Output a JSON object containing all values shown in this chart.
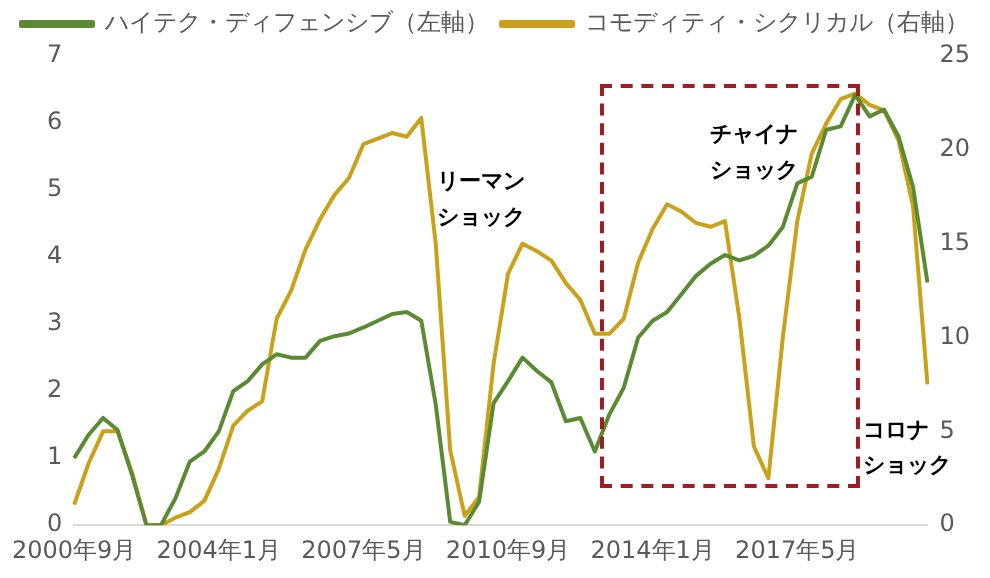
{
  "chart_data": {
    "type": "line",
    "categories": [
      "2000年9月",
      null,
      null,
      null,
      null,
      null,
      null,
      null,
      null,
      null,
      "2004年1月",
      null,
      null,
      null,
      null,
      null,
      null,
      null,
      null,
      null,
      "2007年5月",
      null,
      null,
      null,
      null,
      null,
      null,
      null,
      null,
      null,
      "2010年9月",
      null,
      null,
      null,
      null,
      null,
      null,
      null,
      null,
      null,
      "2014年1月",
      null,
      null,
      null,
      null,
      null,
      null,
      null,
      null,
      null,
      "2017年5月",
      null,
      null,
      null,
      null,
      null,
      null,
      null,
      null,
      null
    ],
    "series": [
      {
        "name": "ハイテク・ディフェンシブ（左軸）",
        "color": "#5a8a32",
        "values": [
          1.0,
          1.35,
          1.6,
          1.42,
          0.75,
          0,
          0,
          0.4,
          0.95,
          1.1,
          1.4,
          2.0,
          2.15,
          2.4,
          2.55,
          2.5,
          2.5,
          2.75,
          2.82,
          2.86,
          2.95,
          3.05,
          3.15,
          3.18,
          3.05,
          1.8,
          0.05,
          0,
          0.35,
          1.82,
          2.15,
          2.5,
          2.3,
          2.13,
          1.55,
          1.6,
          1.1,
          1.65,
          2.05,
          2.8,
          3.05,
          3.18,
          3.45,
          3.72,
          3.9,
          4.03,
          3.95,
          4.02,
          4.17,
          4.45,
          5.1,
          5.2,
          5.9,
          5.95,
          6.42,
          6.1,
          6.2,
          5.8,
          5.05,
          3.62
        ]
      },
      {
        "name": "コモディティ・シクリカル（右軸）",
        "color": "#c9a11a",
        "axis": "y2",
        "values": [
          1.1,
          3.3,
          5.0,
          5.0,
          2.8,
          0,
          0,
          0.4,
          0.7,
          1.3,
          3.0,
          5.3,
          6.1,
          6.6,
          11.0,
          12.5,
          14.7,
          16.3,
          17.6,
          18.5,
          20.3,
          20.6,
          20.9,
          20.7,
          21.7,
          15,
          4,
          0.5,
          1.5,
          8.6,
          13.4,
          15.0,
          14.6,
          14.1,
          12.9,
          12.0,
          10.2,
          10.2,
          11.0,
          14.0,
          15.8,
          17.1,
          16.7,
          16.1,
          15.9,
          16.2,
          11,
          4.2,
          2.5,
          10,
          16.2,
          19.8,
          21.4,
          22.7,
          23.0,
          22.4,
          22.1,
          20.5,
          17,
          7.5
        ]
      }
    ],
    "ylim": [
      0,
      7
    ],
    "yticks": [
      0,
      1,
      2,
      3,
      4,
      5,
      6,
      7
    ],
    "y2lim": [
      0,
      25
    ],
    "y2ticks": [
      0,
      5,
      10,
      15,
      20,
      25
    ],
    "annotations": [
      "リーマン",
      "ショック",
      "チャイナ",
      "ショック",
      "コロナ",
      "ショック"
    ],
    "legend": "top",
    "grid": false,
    "marker": "none",
    "line_style": "solid"
  }
}
